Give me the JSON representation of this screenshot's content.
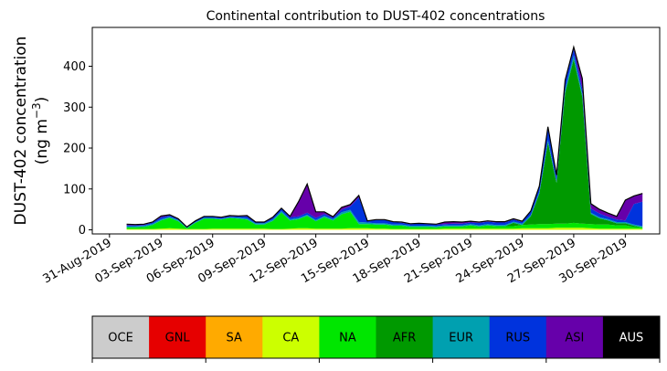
{
  "chart_data": {
    "type": "area",
    "stacked": true,
    "title": "Continental contribution to DUST-402 concentrations",
    "ylabel_line1": "DUST-402 concentration",
    "ylabel_line2_prefix": "(ng m",
    "ylabel_line2_exp": "−3",
    "ylabel_line2_suffix": ")",
    "ylim": [
      -10,
      495
    ],
    "yticks": [
      0,
      100,
      200,
      300,
      400
    ],
    "xlim": [
      "2019-08-30",
      "2019-10-02"
    ],
    "xtick_labels": [
      "31-Aug-2019",
      "03-Sep-2019",
      "06-Sep-2019",
      "09-Sep-2019",
      "12-Sep-2019",
      "15-Sep-2019",
      "18-Sep-2019",
      "21-Sep-2019",
      "24-Sep-2019",
      "27-Sep-2019",
      "30-Sep-2019"
    ],
    "xtick_dates": [
      "2019-08-31",
      "2019-09-03",
      "2019-09-06",
      "2019-09-09",
      "2019-09-12",
      "2019-09-15",
      "2019-09-18",
      "2019-09-21",
      "2019-09-24",
      "2019-09-27",
      "2019-09-30"
    ],
    "grid": false,
    "x": [
      "2019-09-01",
      "2019-09-01 12:00",
      "2019-09-02",
      "2019-09-02 12:00",
      "2019-09-03",
      "2019-09-03 12:00",
      "2019-09-04",
      "2019-09-04 12:00",
      "2019-09-05",
      "2019-09-05 12:00",
      "2019-09-06",
      "2019-09-06 12:00",
      "2019-09-07",
      "2019-09-07 12:00",
      "2019-09-08",
      "2019-09-08 12:00",
      "2019-09-09",
      "2019-09-09 12:00",
      "2019-09-10",
      "2019-09-10 12:00",
      "2019-09-11",
      "2019-09-11 12:00",
      "2019-09-12",
      "2019-09-12 12:00",
      "2019-09-13",
      "2019-09-13 12:00",
      "2019-09-14",
      "2019-09-14 12:00",
      "2019-09-15",
      "2019-09-15 12:00",
      "2019-09-16",
      "2019-09-16 12:00",
      "2019-09-17",
      "2019-09-17 12:00",
      "2019-09-18",
      "2019-09-18 12:00",
      "2019-09-19",
      "2019-09-19 12:00",
      "2019-09-20",
      "2019-09-20 12:00",
      "2019-09-21",
      "2019-09-21 12:00",
      "2019-09-22",
      "2019-09-22 12:00",
      "2019-09-23",
      "2019-09-23 12:00",
      "2019-09-24",
      "2019-09-24 12:00",
      "2019-09-25",
      "2019-09-25 12:00",
      "2019-09-26",
      "2019-09-26 12:00",
      "2019-09-27",
      "2019-09-27 12:00",
      "2019-09-28",
      "2019-09-28 12:00",
      "2019-09-29",
      "2019-09-29 12:00",
      "2019-09-30",
      "2019-09-30 12:00",
      "2019-10-01"
    ],
    "series": [
      {
        "name": "OCE",
        "color": "#cccccc",
        "values": [
          0,
          0,
          0,
          0,
          0,
          0,
          0,
          0,
          0,
          0,
          0,
          0,
          0,
          0,
          0,
          0,
          0,
          0,
          0,
          0,
          0,
          0,
          0,
          0,
          0,
          0,
          0,
          0,
          0,
          0,
          0,
          0,
          0,
          0,
          0,
          0,
          0,
          0,
          0,
          0,
          0,
          0,
          0,
          0,
          0,
          0,
          0,
          0,
          0,
          0,
          0,
          0,
          0,
          0,
          0,
          0,
          0,
          0,
          0,
          0,
          0
        ]
      },
      {
        "name": "GNL",
        "color": "#e60000",
        "values": [
          0,
          0,
          0,
          0,
          0,
          0,
          0,
          0,
          0,
          0,
          0,
          0,
          0,
          0,
          0,
          0,
          0,
          0,
          0,
          0,
          0,
          0,
          0,
          0,
          0,
          0,
          0,
          0,
          0,
          0,
          0,
          0,
          0,
          0,
          0,
          0,
          0,
          0,
          0,
          0,
          0,
          0,
          0,
          0,
          0,
          0,
          0,
          0,
          0,
          0,
          0,
          0,
          0,
          0,
          0,
          0,
          0,
          0,
          0,
          0,
          0
        ]
      },
      {
        "name": "SA",
        "color": "#ffaa00",
        "values": [
          0,
          0,
          0,
          0,
          0,
          0,
          0,
          0,
          0,
          0,
          0,
          0,
          0,
          0,
          0,
          0,
          0,
          0,
          0,
          0,
          0,
          0,
          0,
          0,
          0,
          0,
          0,
          0,
          0,
          0,
          0,
          0,
          0,
          0,
          0,
          0,
          0,
          0,
          0,
          0,
          0,
          0,
          0,
          0,
          0,
          0,
          0,
          0,
          0,
          0,
          0,
          0,
          0,
          0,
          0,
          0,
          0,
          0,
          0,
          0,
          0
        ]
      },
      {
        "name": "CA",
        "color": "#ccff00",
        "values": [
          2,
          2,
          2,
          2,
          3,
          4,
          3,
          2,
          2,
          2,
          3,
          3,
          3,
          3,
          3,
          3,
          3,
          2,
          2,
          3,
          4,
          4,
          3,
          3,
          3,
          3,
          4,
          4,
          4,
          3,
          3,
          2,
          2,
          2,
          2,
          2,
          2,
          3,
          3,
          3,
          3,
          3,
          3,
          3,
          3,
          3,
          4,
          4,
          4,
          4,
          5,
          5,
          5,
          5,
          4,
          3,
          3,
          3,
          3,
          3,
          3
        ]
      },
      {
        "name": "NA",
        "color": "#00e600",
        "values": [
          4,
          4,
          5,
          10,
          20,
          25,
          18,
          2,
          15,
          25,
          24,
          22,
          26,
          24,
          22,
          10,
          10,
          20,
          40,
          20,
          22,
          30,
          18,
          28,
          20,
          35,
          40,
          10,
          10,
          10,
          10,
          8,
          8,
          5,
          5,
          5,
          4,
          5,
          5,
          5,
          8,
          5,
          8,
          6,
          6,
          6,
          8,
          9,
          10,
          10,
          10,
          10,
          12,
          10,
          10,
          10,
          10,
          8,
          8,
          4,
          3
        ]
      },
      {
        "name": "AFR",
        "color": "#009900",
        "values": [
          0,
          0,
          0,
          0,
          0,
          0,
          0,
          0,
          0,
          0,
          0,
          0,
          0,
          0,
          0,
          0,
          0,
          0,
          0,
          0,
          0,
          0,
          0,
          0,
          0,
          0,
          0,
          0,
          0,
          0,
          0,
          0,
          0,
          0,
          0,
          0,
          0,
          0,
          0,
          0,
          0,
          0,
          0,
          0,
          0,
          8,
          0,
          20,
          75,
          200,
          100,
          320,
          400,
          310,
          25,
          15,
          10,
          5,
          5,
          3,
          0
        ]
      },
      {
        "name": "EUR",
        "color": "#00a0b0",
        "values": [
          3,
          3,
          3,
          3,
          3,
          3,
          3,
          2,
          2,
          2,
          2,
          2,
          2,
          3,
          3,
          3,
          3,
          3,
          4,
          3,
          3,
          3,
          3,
          3,
          3,
          5,
          5,
          5,
          4,
          3,
          3,
          3,
          3,
          3,
          3,
          3,
          3,
          3,
          3,
          3,
          3,
          3,
          3,
          3,
          3,
          3,
          3,
          3,
          4,
          6,
          4,
          8,
          10,
          8,
          3,
          3,
          3,
          3,
          3,
          3,
          3
        ]
      },
      {
        "name": "RUS",
        "color": "#0033dd",
        "values": [
          2,
          2,
          2,
          3,
          5,
          3,
          2,
          1,
          2,
          3,
          3,
          3,
          2,
          3,
          5,
          2,
          2,
          4,
          6,
          5,
          4,
          5,
          5,
          5,
          4,
          6,
          8,
          60,
          3,
          8,
          8,
          6,
          4,
          4,
          5,
          4,
          4,
          3,
          4,
          4,
          4,
          6,
          6,
          6,
          6,
          5,
          4,
          10,
          12,
          30,
          12,
          20,
          15,
          12,
          10,
          9,
          6,
          6,
          4,
          50,
          60
        ]
      },
      {
        "name": "ASI",
        "color": "#6600aa",
        "values": [
          3,
          2,
          2,
          1,
          3,
          2,
          1,
          0,
          1,
          1,
          1,
          1,
          2,
          1,
          2,
          1,
          1,
          2,
          1,
          2,
          36,
          70,
          15,
          5,
          2,
          6,
          5,
          5,
          1,
          1,
          1,
          1,
          2,
          1,
          1,
          1,
          1,
          5,
          5,
          4,
          3,
          2,
          2,
          2,
          2,
          2,
          2,
          0,
          2,
          2,
          3,
          3,
          5,
          25,
          12,
          10,
          9,
          8,
          50,
          20,
          20
        ]
      },
      {
        "name": "AUS",
        "color": "#000000",
        "values": [
          0,
          0,
          0,
          0,
          0,
          0,
          0,
          0,
          0,
          0,
          0,
          0,
          0,
          0,
          0,
          0,
          0,
          0,
          0,
          0,
          0,
          0,
          0,
          0,
          0,
          0,
          0,
          0,
          0,
          0,
          0,
          0,
          0,
          0,
          0,
          0,
          0,
          0,
          0,
          0,
          0,
          0,
          0,
          0,
          0,
          0,
          0,
          0,
          0,
          0,
          0,
          0,
          0,
          0,
          0,
          0,
          0,
          0,
          0,
          0,
          0
        ]
      }
    ],
    "legend_placement": "below"
  }
}
